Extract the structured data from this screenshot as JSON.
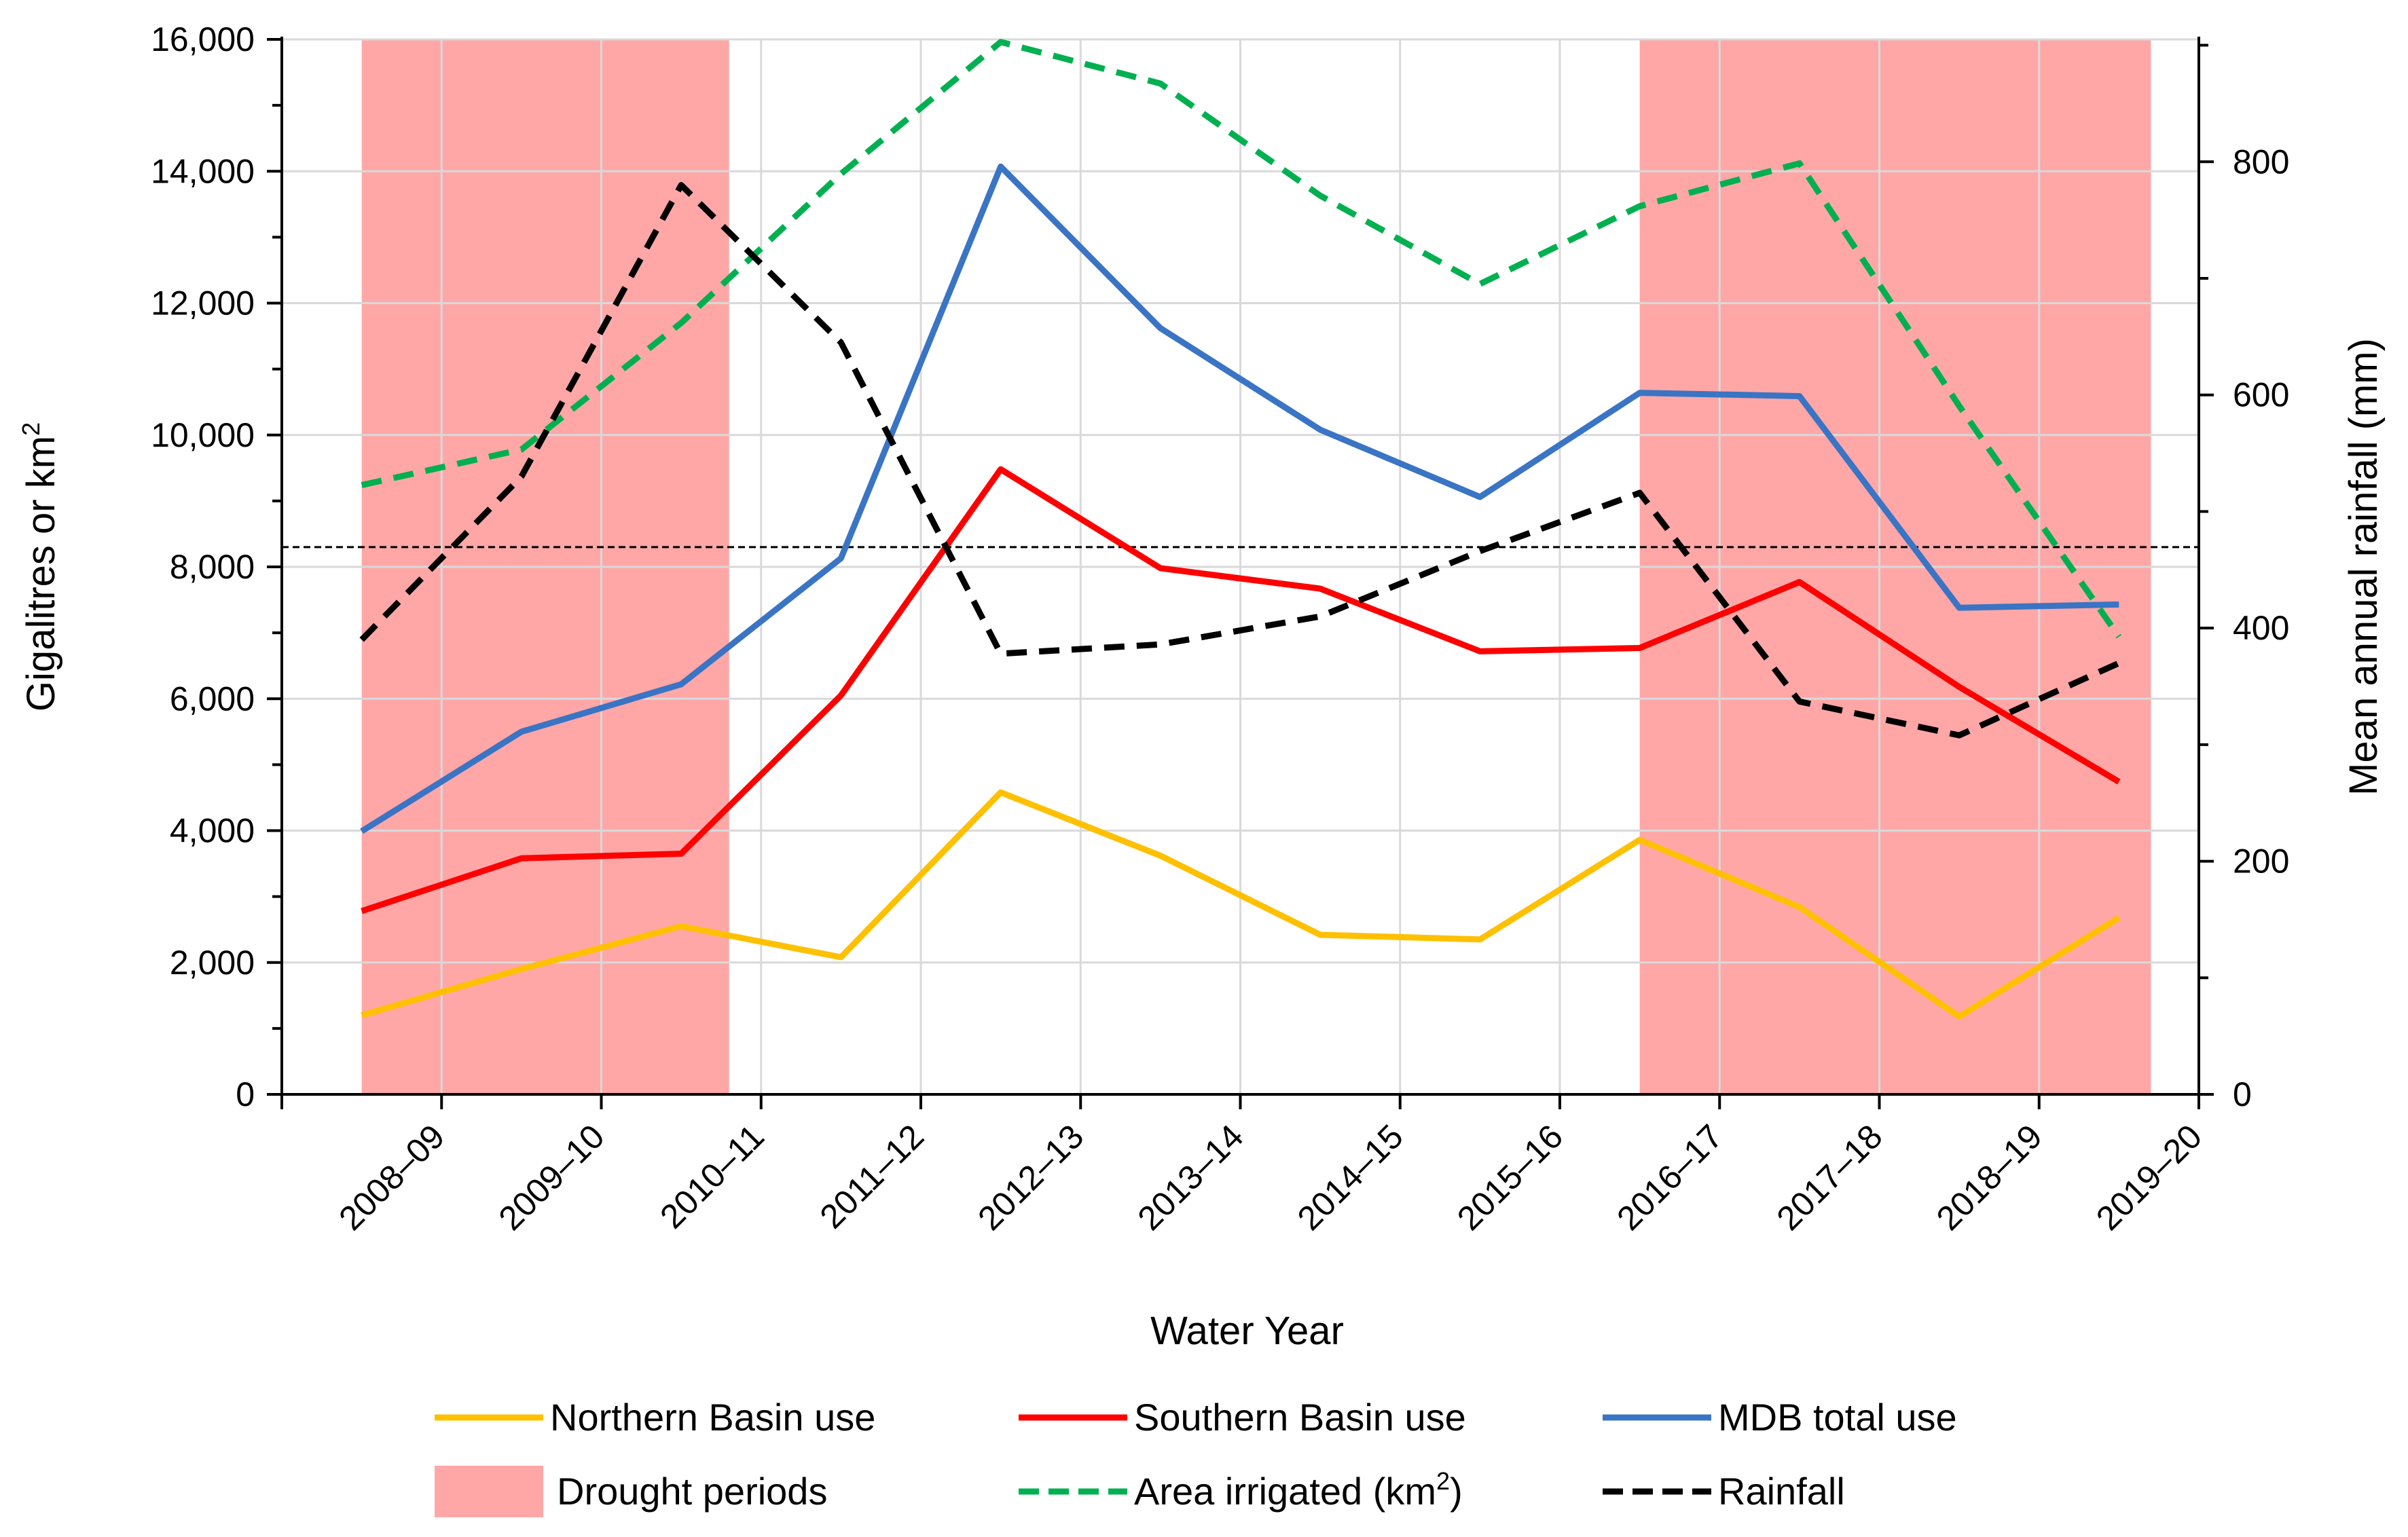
{
  "chart_data": {
    "type": "line",
    "categories": [
      "2008–09",
      "2009–10",
      "2010–11",
      "2011–12",
      "2012–13",
      "2013–14",
      "2014–15",
      "2015–16",
      "2016–17",
      "2017–18",
      "2018–19",
      "2019–20"
    ],
    "xlabel": "Water Year",
    "ylabel_left": "Gigalitres or km",
    "ylabel_left_sup": "2",
    "ylabel_right": "Mean annual rainfall (mm)",
    "ylim_left": [
      0,
      16000
    ],
    "ylim_right": [
      0,
      905
    ],
    "left_ticks": [
      "0",
      "2,000",
      "4,000",
      "6,000",
      "8,000",
      "10,000",
      "12,000",
      "14,000",
      "16,000"
    ],
    "right_ticks": [
      "0",
      "200",
      "400",
      "600",
      "800"
    ],
    "grid": true,
    "reference_line_left_value": 8300,
    "drought_periods": [
      [
        2008.5,
        2010.8
      ],
      [
        2016.5,
        2019.7
      ]
    ],
    "series": [
      {
        "name": "Northern Basin use",
        "axis": "left",
        "color": "#FFC000",
        "dash": "solid",
        "values": [
          1200,
          1900,
          2550,
          2080,
          4580,
          3620,
          2420,
          2350,
          3860,
          2840,
          1180,
          2680
        ]
      },
      {
        "name": "Southern Basin use",
        "axis": "left",
        "color": "#FF0000",
        "dash": "solid",
        "values": [
          2780,
          3580,
          3650,
          6050,
          9480,
          7980,
          7670,
          6720,
          6770,
          7770,
          6180,
          4740
        ]
      },
      {
        "name": "MDB total use",
        "axis": "left",
        "color": "#3A74C4",
        "dash": "solid",
        "values": [
          3990,
          5500,
          6220,
          8130,
          14070,
          11620,
          10080,
          9060,
          10640,
          10590,
          7380,
          7430
        ]
      },
      {
        "name": "Area irrigated (km",
        "name_sup": "2",
        "name_tail": ")",
        "axis": "left",
        "color": "#00B050",
        "dash": "dashed",
        "values": [
          9240,
          9780,
          11700,
          13960,
          15960,
          15330,
          13630,
          12290,
          13470,
          14120,
          10440,
          6940
        ]
      },
      {
        "name": "Rainfall",
        "axis": "right",
        "color": "#000000",
        "dash": "dashed",
        "values": [
          390,
          530,
          780,
          645,
          378,
          386,
          410,
          466,
          516,
          337,
          308,
          370
        ]
      }
    ],
    "legend": {
      "drought_label": "Drought periods",
      "drought_color": "#FFA7A7"
    }
  }
}
